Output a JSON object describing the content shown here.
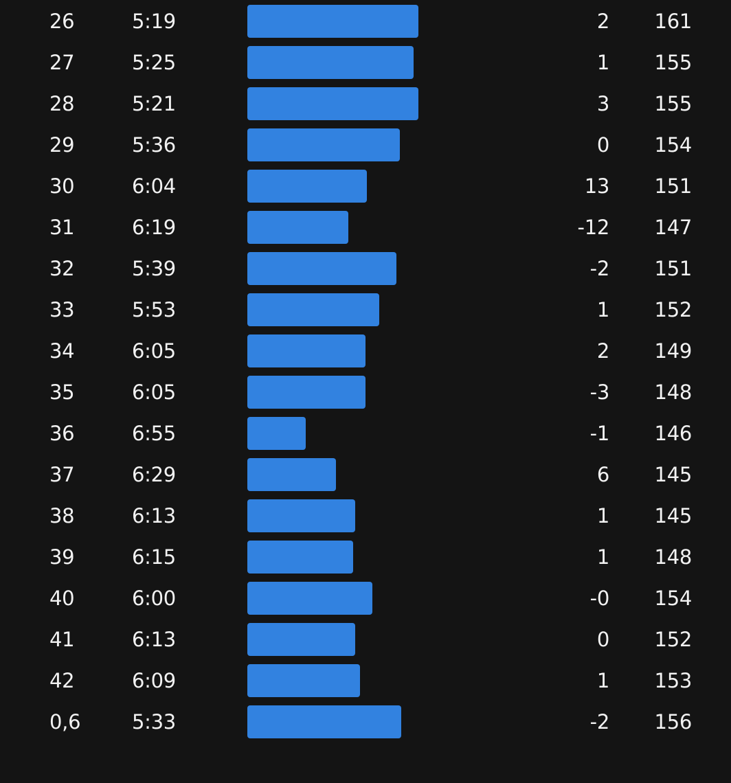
{
  "colors": {
    "background": "#141414",
    "text": "#f2f2f2",
    "bar": "#3282e0"
  },
  "splits": [
    {
      "km": "26",
      "pace": "5:19",
      "elevation": "2",
      "heart_rate": "161",
      "relative_speed": 1.0
    },
    {
      "km": "27",
      "pace": "5:25",
      "elevation": "1",
      "heart_rate": "155",
      "relative_speed": 0.97
    },
    {
      "km": "28",
      "pace": "5:21",
      "elevation": "3",
      "heart_rate": "155",
      "relative_speed": 1.0
    },
    {
      "km": "29",
      "pace": "5:36",
      "elevation": "0",
      "heart_rate": "154",
      "relative_speed": 0.89
    },
    {
      "km": "30",
      "pace": "6:04",
      "elevation": "13",
      "heart_rate": "151",
      "relative_speed": 0.7
    },
    {
      "km": "31",
      "pace": "6:19",
      "elevation": "-12",
      "heart_rate": "147",
      "relative_speed": 0.59
    },
    {
      "km": "32",
      "pace": "5:39",
      "elevation": "-2",
      "heart_rate": "151",
      "relative_speed": 0.87
    },
    {
      "km": "33",
      "pace": "5:53",
      "elevation": "1",
      "heart_rate": "152",
      "relative_speed": 0.77
    },
    {
      "km": "34",
      "pace": "6:05",
      "elevation": "2",
      "heart_rate": "149",
      "relative_speed": 0.69
    },
    {
      "km": "35",
      "pace": "6:05",
      "elevation": "-3",
      "heart_rate": "148",
      "relative_speed": 0.69
    },
    {
      "km": "36",
      "pace": "6:55",
      "elevation": "-1",
      "heart_rate": "146",
      "relative_speed": 0.34
    },
    {
      "km": "37",
      "pace": "6:29",
      "elevation": "6",
      "heart_rate": "145",
      "relative_speed": 0.52
    },
    {
      "km": "38",
      "pace": "6:13",
      "elevation": "1",
      "heart_rate": "145",
      "relative_speed": 0.63
    },
    {
      "km": "39",
      "pace": "6:15",
      "elevation": "1",
      "heart_rate": "148",
      "relative_speed": 0.62
    },
    {
      "km": "40",
      "pace": "6:00",
      "elevation": "-0",
      "heart_rate": "154",
      "relative_speed": 0.73
    },
    {
      "km": "41",
      "pace": "6:13",
      "elevation": "0",
      "heart_rate": "152",
      "relative_speed": 0.63
    },
    {
      "km": "42",
      "pace": "6:09",
      "elevation": "1",
      "heart_rate": "153",
      "relative_speed": 0.66
    },
    {
      "km": "0,6",
      "pace": "5:33",
      "elevation": "-2",
      "heart_rate": "156",
      "relative_speed": 0.9
    }
  ]
}
